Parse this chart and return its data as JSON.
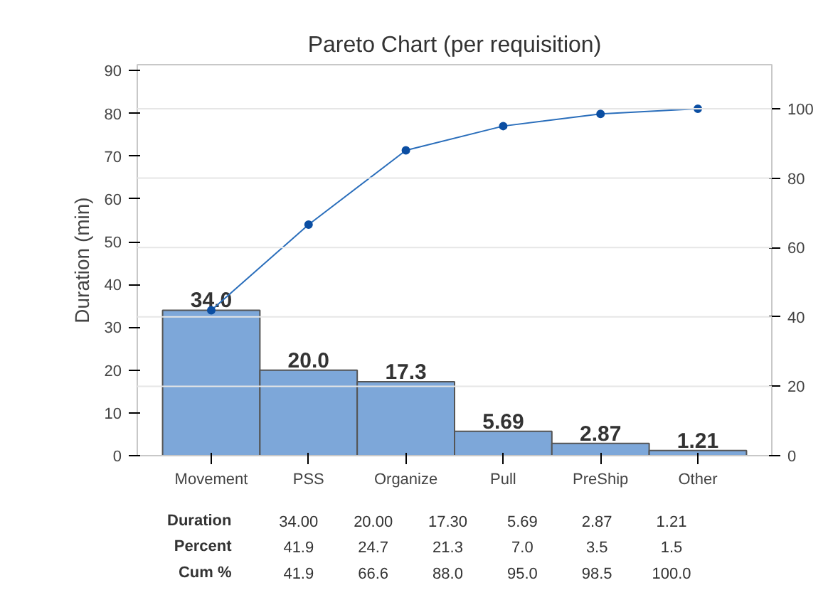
{
  "chart_data": {
    "type": "bar",
    "title": "Pareto Chart (per requisition)",
    "ylabel": "Duration (min)",
    "categories": [
      "Movement",
      "PSS",
      "Organize",
      "Pull",
      "PreShip",
      "Other"
    ],
    "ylim": [
      0,
      91.4
    ],
    "yticks": [
      0,
      10,
      20,
      30,
      40,
      50,
      60,
      70,
      80,
      90
    ],
    "y2lim": [
      0,
      112.7
    ],
    "y2ticks": [
      0,
      20,
      40,
      60,
      80,
      100
    ],
    "grid": "y",
    "marker": "circle",
    "series": [
      {
        "color": "#7da7d9",
        "values": [
          34.0,
          20.0,
          17.3,
          5.69,
          2.87,
          1.21
        ],
        "value_labels": [
          "34.0",
          "20.0",
          "17.3",
          "5.69",
          "2.87",
          "1.21"
        ]
      },
      {
        "type": "line",
        "axis": "y2",
        "color": "#2a6ebb",
        "values": [
          41.9,
          66.6,
          88.0,
          95.0,
          98.5,
          100.0
        ]
      }
    ],
    "annotations": [
      "Duration",
      "34.00",
      "20.00",
      "17.30",
      "5.69",
      "2.87",
      "1.21",
      "Percent",
      "41.9",
      "24.7",
      "21.3",
      "7.0",
      "3.5",
      "1.5",
      "Cum %",
      "41.9",
      "66.6",
      "88.0",
      "95.0",
      "98.5",
      "100.0"
    ]
  }
}
